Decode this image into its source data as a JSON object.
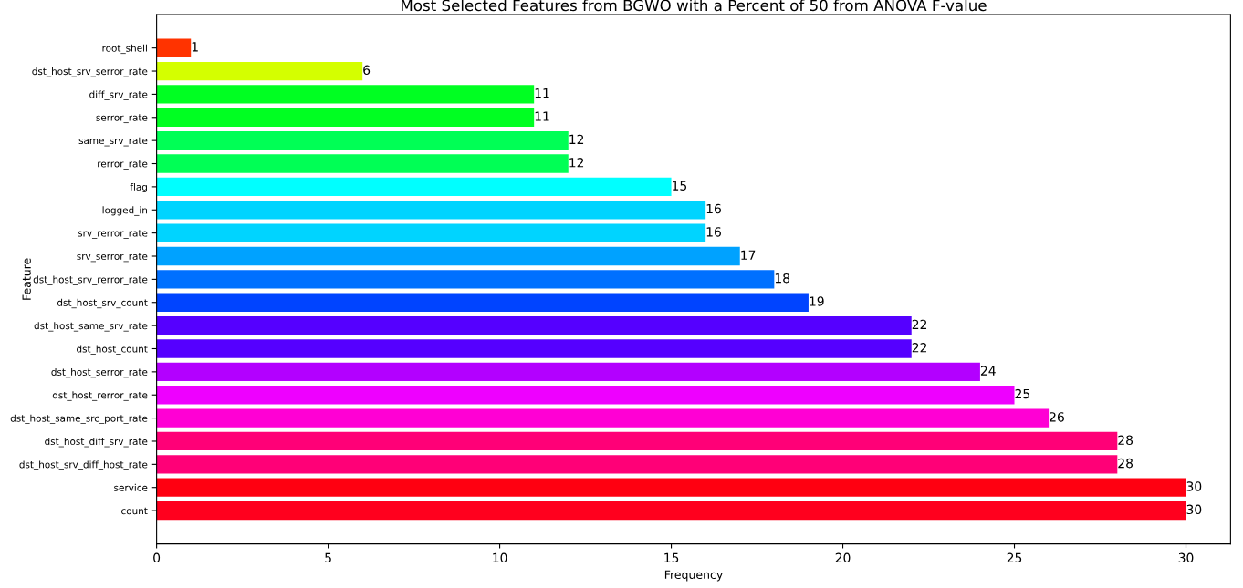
{
  "chart_data": {
    "type": "bar",
    "orientation": "horizontal",
    "title": "Most Selected Features from BGWO with a Percent of 50 from ANOVA F-value",
    "xlabel": "Frequency",
    "ylabel": "Feature",
    "categories": [
      "root_shell",
      "dst_host_srv_serror_rate",
      "diff_srv_rate",
      "serror_rate",
      "same_srv_rate",
      "rerror_rate",
      "flag",
      "logged_in",
      "srv_rerror_rate",
      "srv_serror_rate",
      "dst_host_srv_rerror_rate",
      "dst_host_srv_count",
      "dst_host_same_srv_rate",
      "dst_host_count",
      "dst_host_serror_rate",
      "dst_host_rerror_rate",
      "dst_host_same_src_port_rate",
      "dst_host_diff_srv_rate",
      "dst_host_srv_diff_host_rate",
      "service",
      "count"
    ],
    "values": [
      1,
      6,
      11,
      11,
      12,
      12,
      15,
      16,
      16,
      17,
      18,
      19,
      22,
      22,
      24,
      25,
      26,
      28,
      28,
      30,
      30
    ],
    "colors": [
      "#ff3300",
      "#d4ff00",
      "#00ff22",
      "#00ff22",
      "#00ff55",
      "#00ff55",
      "#00ffff",
      "#00d4ff",
      "#00d4ff",
      "#00a2ff",
      "#0070ff",
      "#0044ff",
      "#5500ff",
      "#5500ff",
      "#b300ff",
      "#ee00ff",
      "#ff00d4",
      "#ff0077",
      "#ff0077",
      "#ff0011",
      "#ff001e"
    ],
    "xlim": [
      0,
      31.3
    ],
    "xticks": [
      0,
      5,
      10,
      15,
      20,
      25,
      30
    ],
    "data_labels": true,
    "grid": false,
    "legend": false
  }
}
